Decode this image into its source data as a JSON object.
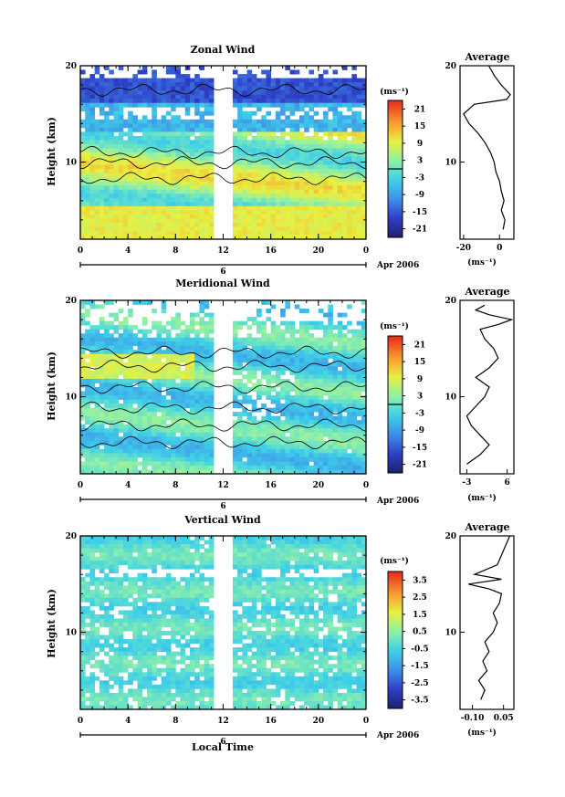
{
  "chart_data": [
    {
      "type": "heatmap",
      "title": "Zonal Wind",
      "ylabel": "Height (km)",
      "ylim": [
        2,
        20
      ],
      "yticks": [
        10,
        20
      ],
      "xticks": [
        "0",
        "4",
        "8",
        "12",
        "16",
        "20",
        "0"
      ],
      "date_tick": "6",
      "date_label": "Apr 2006",
      "xlim": [
        0,
        24
      ],
      "data_gap_hours": [
        11.2,
        12.7
      ],
      "colorbar": {
        "unit": "(ms⁻¹)",
        "ticks": [
          "21",
          "15",
          "9",
          "3",
          "-3",
          "-9",
          "-15",
          "-21"
        ],
        "range": [
          -24,
          24
        ],
        "zero_line": true
      },
      "profile": {
        "title": "Average",
        "xticks": [
          "-20",
          "0"
        ],
        "xtick_values": [
          -20,
          0
        ],
        "xlim": [
          -22,
          8
        ],
        "unit": "(ms⁻¹)",
        "yticks": [
          10,
          20
        ],
        "height": [
          3,
          4,
          5,
          6,
          7,
          8,
          9,
          10,
          11,
          12,
          13,
          14,
          15,
          16,
          16.5,
          17,
          18,
          19,
          20
        ],
        "value": [
          2,
          3,
          1,
          2.5,
          1,
          0,
          -2,
          -3,
          -5,
          -8,
          -12,
          -17,
          -20,
          -14,
          4,
          6,
          1,
          -3,
          -6
        ]
      }
    },
    {
      "type": "heatmap",
      "title": "Meridional Wind",
      "ylabel": "Height (km)",
      "ylim": [
        2,
        20
      ],
      "yticks": [
        10,
        20
      ],
      "xticks": [
        "0",
        "4",
        "8",
        "12",
        "16",
        "20",
        "0"
      ],
      "date_tick": "6",
      "date_label": "Apr 2006",
      "xlim": [
        0,
        24
      ],
      "data_gap_hours": [
        11.2,
        12.7
      ],
      "colorbar": {
        "unit": "(ms⁻¹)",
        "ticks": [
          "21",
          "15",
          "9",
          "3",
          "-3",
          "-9",
          "-15",
          "-21"
        ],
        "range": [
          -24,
          24
        ],
        "zero_line": true
      },
      "profile": {
        "title": "Average",
        "xticks": [
          "-3",
          "6"
        ],
        "xtick_values": [
          -3,
          6
        ],
        "xlim": [
          -4.5,
          7.5
        ],
        "unit": "(ms⁻¹)",
        "yticks": [
          10,
          20
        ],
        "height": [
          3,
          4,
          5,
          6,
          7,
          8,
          9,
          10,
          11,
          12,
          13,
          14,
          15,
          16,
          17,
          17.5,
          18,
          18.5,
          19,
          19.5
        ],
        "value": [
          -3,
          0,
          2,
          0,
          -2,
          -3,
          -1,
          1,
          2,
          -1,
          2,
          4,
          3,
          1,
          0,
          4,
          7,
          2,
          -1,
          1
        ]
      }
    },
    {
      "type": "heatmap",
      "title": "Vertical Wind",
      "ylabel": "Height (km)",
      "ylim": [
        2,
        20
      ],
      "yticks": [
        10,
        20
      ],
      "xticks": [
        "0",
        "4",
        "8",
        "12",
        "16",
        "20",
        "0"
      ],
      "date_tick": "6",
      "date_label": "Apr 2006",
      "xlim": [
        0,
        24
      ],
      "data_gap_hours": [
        11.2,
        12.7
      ],
      "colorbar": {
        "unit": "(ms⁻¹)",
        "ticks": [
          "3.5",
          "2.5",
          "1.5",
          "0.5",
          "-0.5",
          "-1.5",
          "-2.5",
          "-3.5"
        ],
        "range": [
          -4,
          4
        ],
        "zero_line": false
      },
      "profile": {
        "title": "Average",
        "xticks": [
          "-0.10",
          "0.05"
        ],
        "xtick_values": [
          -0.1,
          0.05
        ],
        "xlim": [
          -0.16,
          0.1
        ],
        "unit": "(ms⁻¹)",
        "yticks": [
          10,
          20
        ],
        "height": [
          3,
          4,
          5,
          6,
          7,
          8,
          9,
          10,
          11,
          12,
          13,
          14,
          14.5,
          15,
          15.5,
          16,
          17,
          18,
          19,
          20
        ],
        "value": [
          -0.06,
          -0.04,
          -0.07,
          -0.03,
          -0.05,
          -0.02,
          -0.04,
          0.0,
          0.02,
          0.0,
          0.03,
          0.04,
          -0.02,
          -0.12,
          0.04,
          -0.09,
          0.02,
          0.04,
          0.06,
          0.08
        ]
      }
    }
  ],
  "xlabel": "Local Time"
}
